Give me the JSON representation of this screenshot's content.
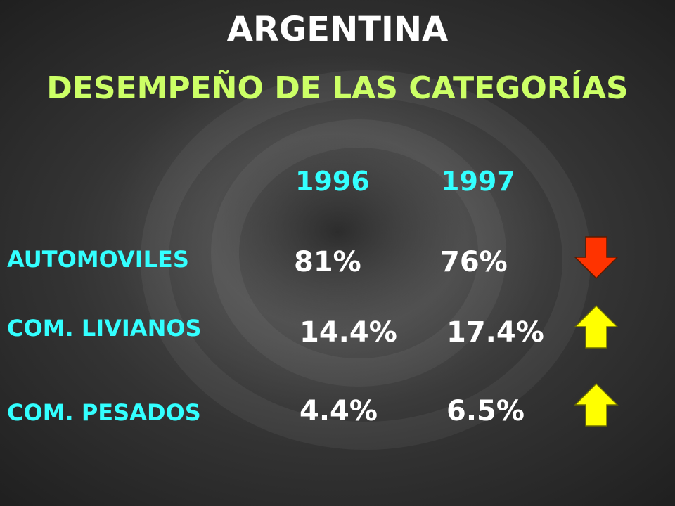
{
  "slide": {
    "title": "ARGENTINA",
    "subtitle": "DESEMPEÑO DE LAS CATEGORÍAS"
  },
  "table": {
    "years": [
      "1996",
      "1997"
    ],
    "rows": [
      {
        "category": "AUTOMOVILES",
        "v1996": "81%",
        "v1997": "76%",
        "trend": "down",
        "trend_icon": "arrow-down-icon",
        "trend_color": "#ff3300"
      },
      {
        "category": "COM. LIVIANOS",
        "v1996": "14.4%",
        "v1997": "17.4%",
        "trend": "up",
        "trend_icon": "arrow-up-icon",
        "trend_color": "#ffff00"
      },
      {
        "category": "COM. PESADOS",
        "v1996": "4.4%",
        "v1997": "6.5%",
        "trend": "up",
        "trend_icon": "arrow-up-icon",
        "trend_color": "#ffff00"
      }
    ]
  },
  "colors": {
    "title": "#ffffff",
    "subtitle": "#ccff66",
    "labels": "#33ffff",
    "values": "#ffffff"
  }
}
